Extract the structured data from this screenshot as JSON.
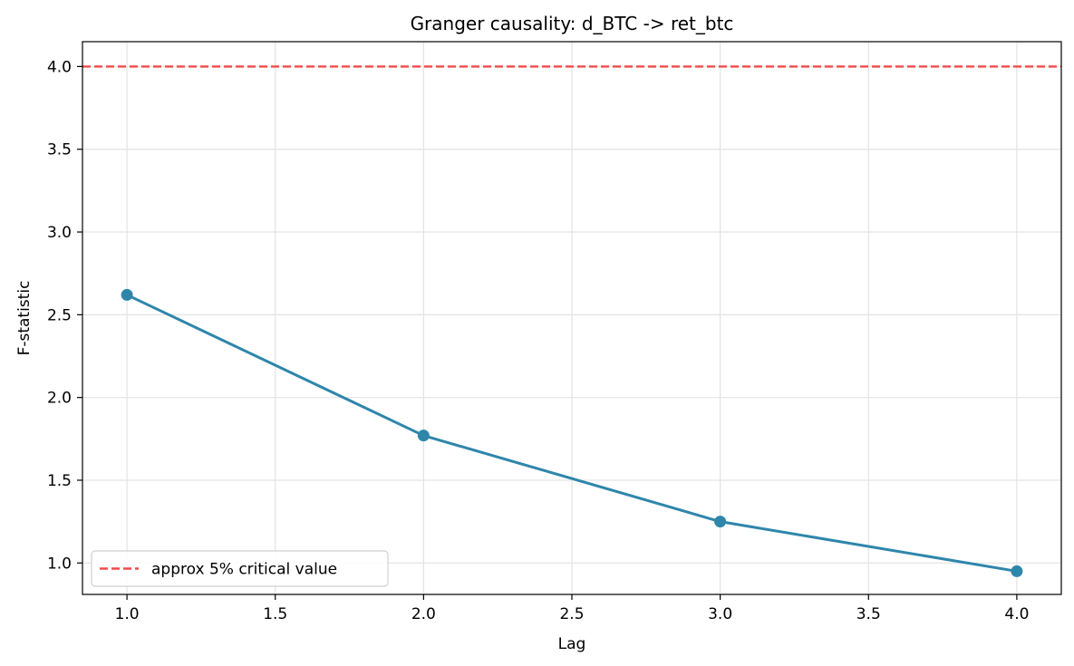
{
  "chart_data": {
    "type": "line",
    "title": "Granger causality: d_BTC -> ret_btc",
    "xlabel": "Lag",
    "ylabel": "F-statistic",
    "xlim": [
      0.85,
      4.15
    ],
    "ylim": [
      0.81,
      4.15
    ],
    "xticks": [
      1.0,
      1.5,
      2.0,
      2.5,
      3.0,
      3.5,
      4.0
    ],
    "yticks": [
      1.0,
      1.5,
      2.0,
      2.5,
      3.0,
      3.5,
      4.0
    ],
    "xtick_labels": [
      "1.0",
      "1.5",
      "2.0",
      "2.5",
      "3.0",
      "3.5",
      "4.0"
    ],
    "ytick_labels": [
      "1.0",
      "1.5",
      "2.0",
      "2.5",
      "3.0",
      "3.5",
      "4.0"
    ],
    "grid": true,
    "legend_position": "lower-left",
    "series": [
      {
        "x": [
          1,
          2,
          3,
          4
        ],
        "values": [
          2.62,
          1.77,
          1.25,
          0.95
        ],
        "color": "#2e86ab",
        "marker": "circle"
      }
    ],
    "reference_lines": [
      {
        "orientation": "horizontal",
        "value": 4.0,
        "style": "dashed",
        "color": "#f04a4a",
        "label": "approx 5% critical value"
      }
    ]
  }
}
